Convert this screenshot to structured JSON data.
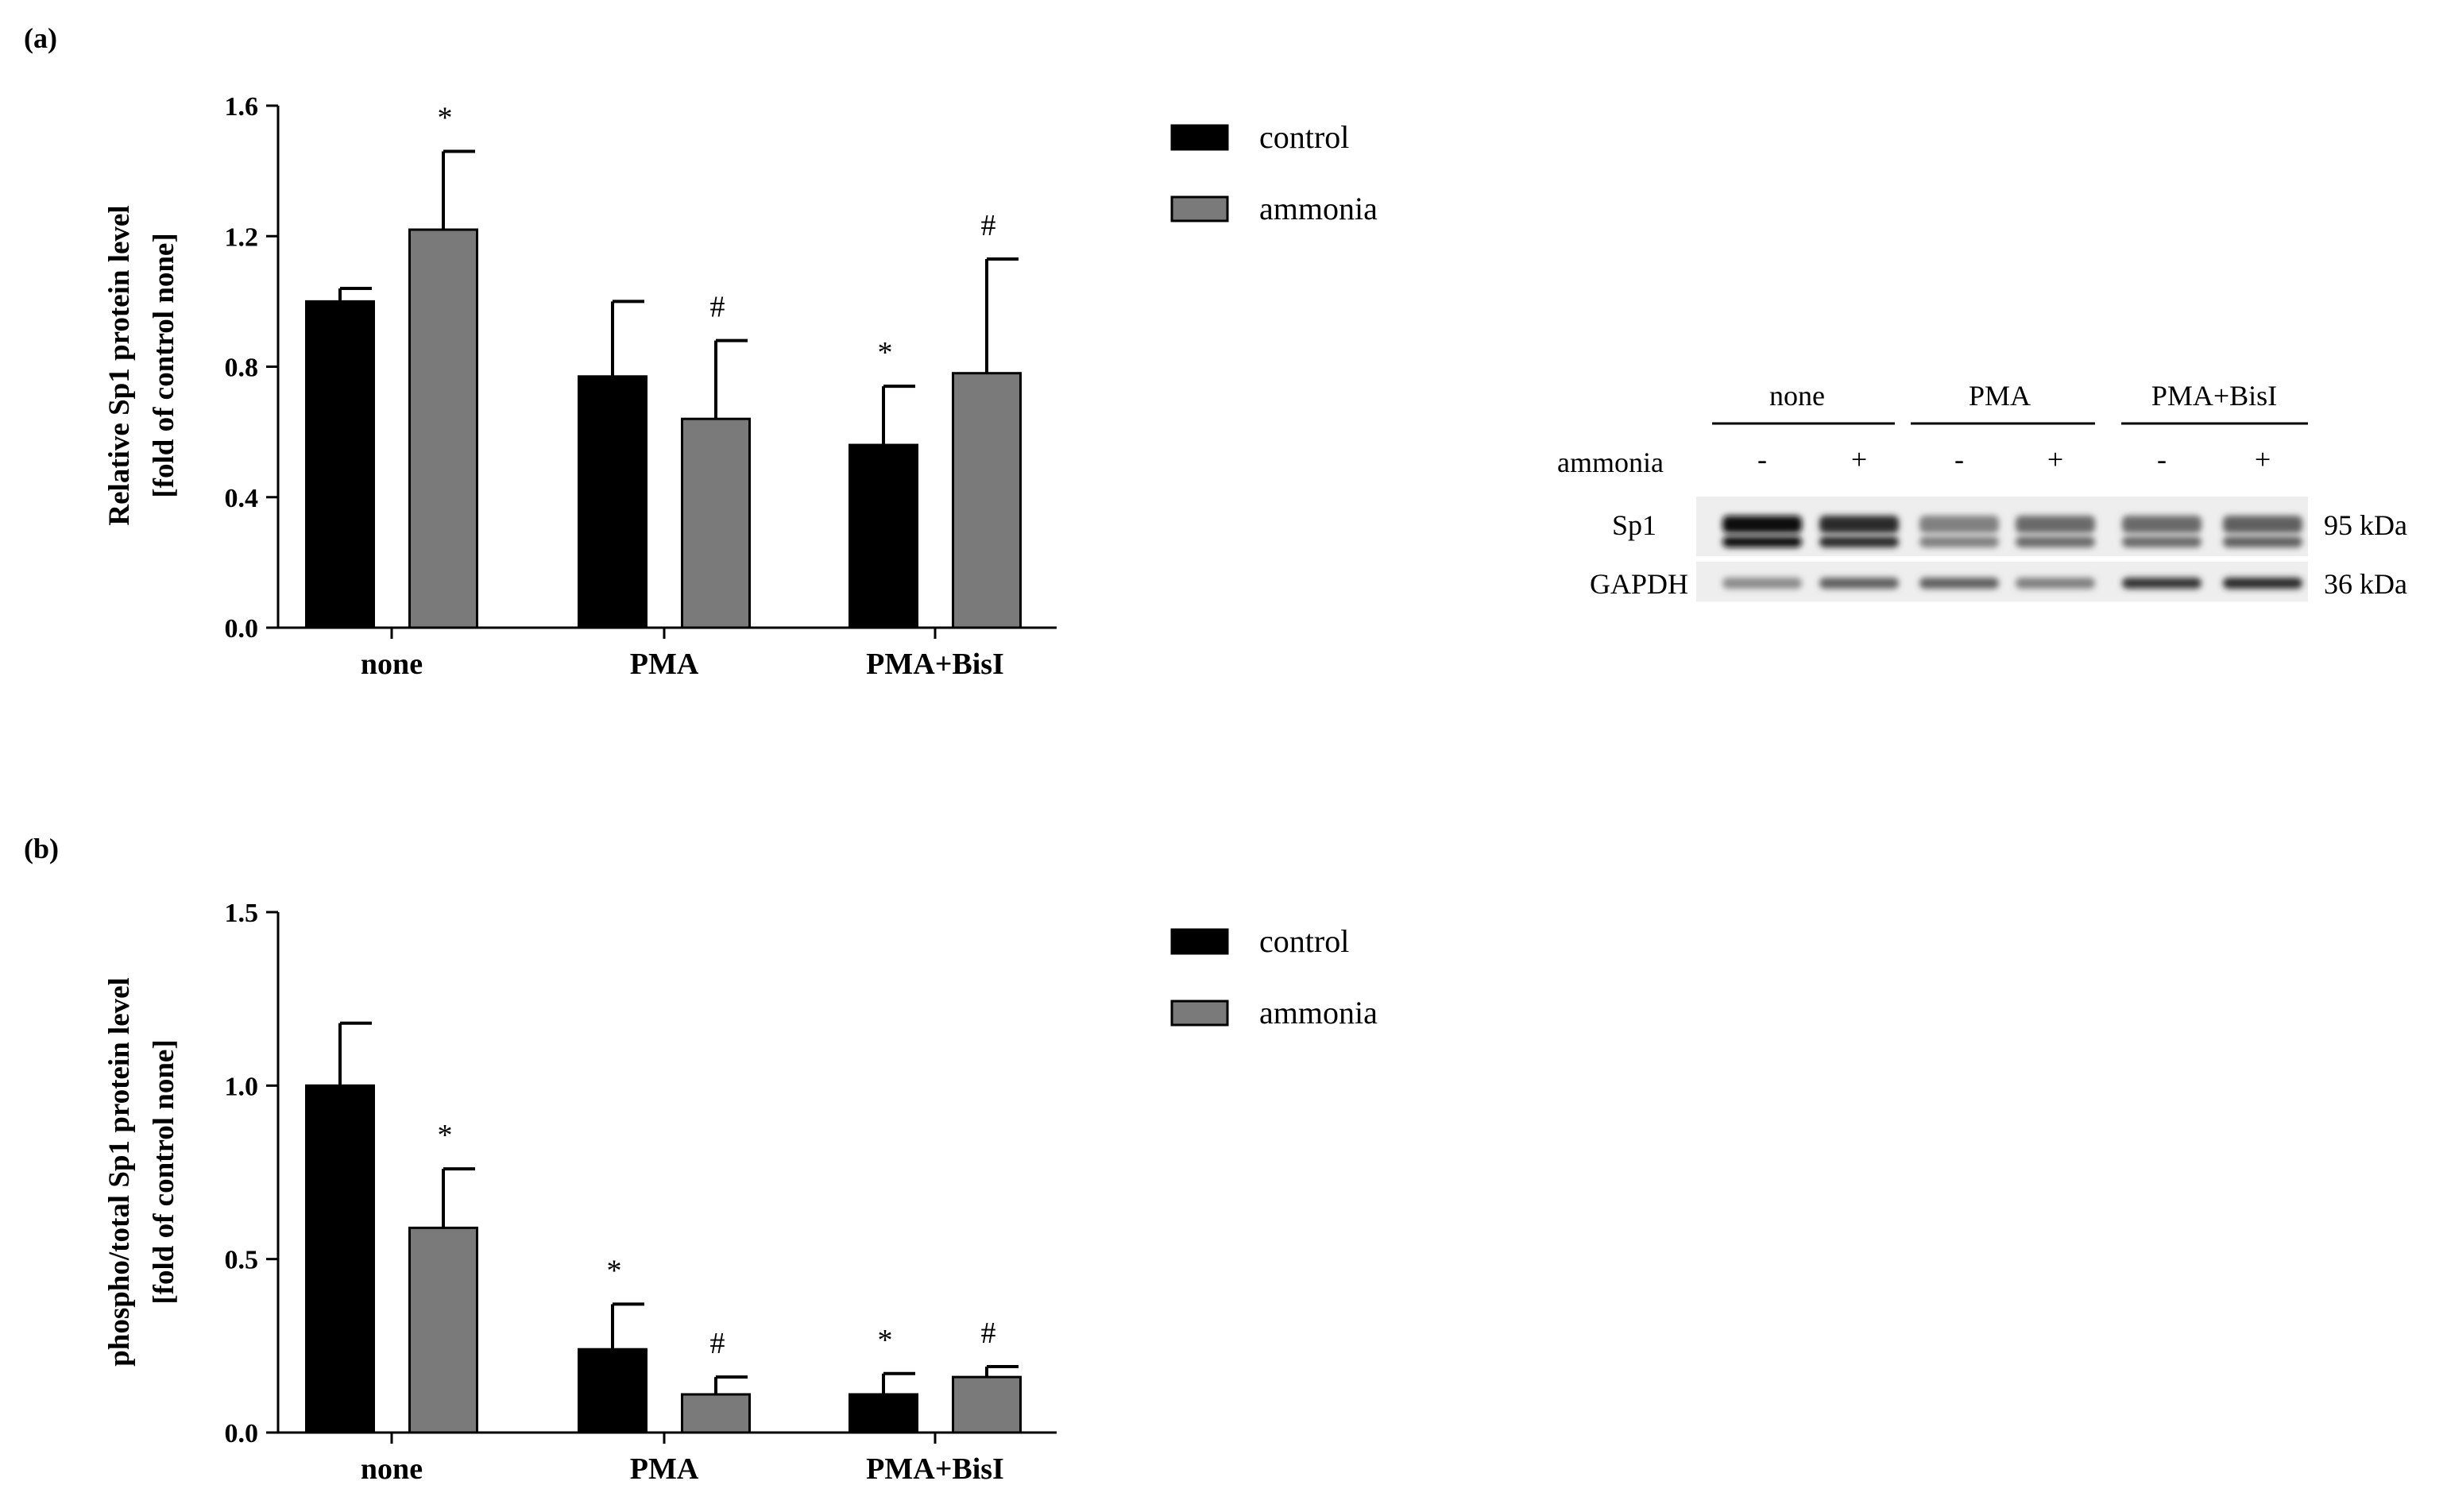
{
  "panels": {
    "a": {
      "label": "(a)"
    },
    "b": {
      "label": "(b)"
    }
  },
  "colors": {
    "control": "#000000",
    "ammonia": "#7a7a7a"
  },
  "chart_data": [
    {
      "type": "bar",
      "categories": [
        "none",
        "PMA",
        "PMA+BisI"
      ],
      "ylabel": "Relative Sp1 protein level",
      "ylabel2": "[fold of control none]",
      "ylim": [
        0,
        1.6
      ],
      "yticks": [
        0.0,
        0.4,
        0.8,
        1.2,
        1.6
      ],
      "ytick_labels": [
        "0.0",
        "0.4",
        "0.8",
        "1.2",
        "1.6"
      ],
      "series": [
        {
          "name": "control",
          "values": [
            1.0,
            0.77,
            0.56
          ],
          "errors": [
            0.04,
            0.23,
            0.18
          ],
          "markers": [
            "",
            "",
            "*"
          ]
        },
        {
          "name": "ammonia",
          "values": [
            1.22,
            0.64,
            0.78
          ],
          "errors": [
            0.24,
            0.24,
            0.35
          ],
          "markers": [
            "*",
            "#",
            "#"
          ]
        }
      ],
      "legend": [
        "control",
        "ammonia"
      ],
      "legend_position": "right"
    },
    {
      "type": "bar",
      "categories": [
        "none",
        "PMA",
        "PMA+BisI"
      ],
      "ylabel": "phospho/total Sp1 protein level",
      "ylabel2": "[fold of control none]",
      "ylim": [
        0,
        1.5
      ],
      "yticks": [
        0.0,
        0.5,
        1.0,
        1.5
      ],
      "ytick_labels": [
        "0.0",
        "0.5",
        "1.0",
        "1.5"
      ],
      "series": [
        {
          "name": "control",
          "values": [
            1.0,
            0.24,
            0.11
          ],
          "errors": [
            0.18,
            0.13,
            0.06
          ],
          "markers": [
            "",
            "*",
            "*"
          ]
        },
        {
          "name": "ammonia",
          "values": [
            0.59,
            0.11,
            0.16
          ],
          "errors": [
            0.17,
            0.05,
            0.03
          ],
          "markers": [
            "*",
            "#",
            "#"
          ]
        }
      ],
      "legend": [
        "control",
        "ammonia"
      ],
      "legend_position": "right"
    }
  ],
  "blot": {
    "groups": [
      "none",
      "PMA",
      "PMA+BisI"
    ],
    "row_label": "ammonia",
    "lane_signs": [
      "-",
      "+",
      "-",
      "+",
      "-",
      "+"
    ],
    "bands": [
      {
        "name": "Sp1",
        "size": "95 kDa",
        "intensity": [
          1.0,
          0.85,
          0.45,
          0.55,
          0.55,
          0.6
        ]
      },
      {
        "name": "GAPDH",
        "size": "36 kDa",
        "intensity": [
          0.4,
          0.6,
          0.6,
          0.45,
          0.8,
          0.85
        ]
      }
    ]
  }
}
